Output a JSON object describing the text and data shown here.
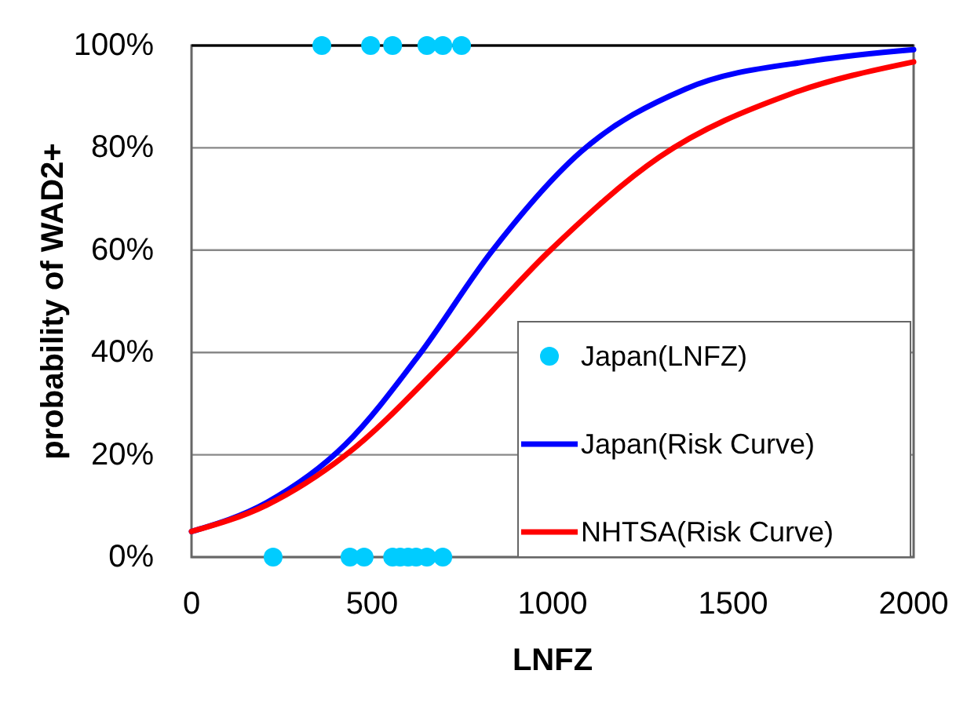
{
  "chart_data": {
    "type": "line",
    "xlabel": "LNFZ",
    "ylabel": "probability of WAD2+",
    "xlim": [
      0,
      2000
    ],
    "xticks": [
      0,
      500,
      1000,
      1500,
      2000
    ],
    "ylim": [
      0,
      100
    ],
    "yticks": [
      {
        "value": 0,
        "label": "0%"
      },
      {
        "value": 20,
        "label": "20%"
      },
      {
        "value": 40,
        "label": "40%"
      },
      {
        "value": 60,
        "label": "60%"
      },
      {
        "value": 80,
        "label": "80%"
      },
      {
        "value": 100,
        "label": "100%"
      }
    ],
    "grid": "y",
    "legend": "bottom right",
    "series": [
      {
        "name": "Japan(LNFZ)",
        "type": "scatter",
        "marker": "circle",
        "color": "#00ccff",
        "x": [
          361,
          496,
          557,
          652,
          696,
          748,
          226,
          439,
          478,
          557,
          578,
          600,
          622,
          652,
          696
        ],
        "values": [
          100,
          100,
          100,
          100,
          100,
          100,
          0,
          0,
          0,
          0,
          0,
          0,
          0,
          0,
          0
        ]
      },
      {
        "name": "Japan(Risk Curve)",
        "color": "#0000ff",
        "x": [
          0,
          209,
          426,
          629,
          832,
          1078,
          1368,
          1730,
          2000
        ],
        "values": [
          5,
          10.7,
          22,
          39.4,
          59.8,
          79.2,
          91.5,
          97.1,
          99.2
        ]
      },
      {
        "name": "NHTSA(Risk Curve)",
        "color": "#ff0000",
        "x": [
          0,
          209,
          426,
          716,
          991,
          1296,
          1658,
          2000
        ],
        "values": [
          5,
          10.2,
          19.9,
          39.4,
          59.8,
          78.2,
          90.5,
          96.8
        ]
      }
    ]
  }
}
